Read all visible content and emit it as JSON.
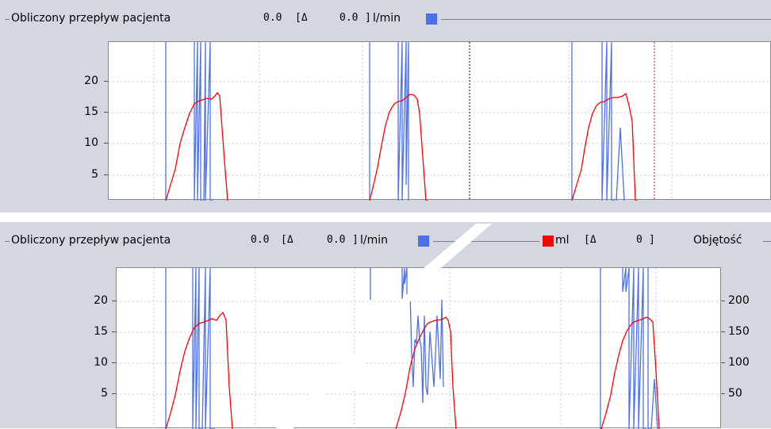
{
  "top_chart": {
    "title": "Obliczony przepływ pacjenta",
    "value": "0.0",
    "delta_open": "[Δ",
    "delta_value": "0.0",
    "delta_close": "]",
    "unit": "l/min",
    "legend_color": "#4c70ea",
    "y_ticks": [
      "20",
      "15",
      "10",
      "5"
    ]
  },
  "bottom_chart": {
    "title": "Obliczony przepływ pacjenta",
    "value": "0.0",
    "delta_open": "[Δ",
    "delta_value": "0.0",
    "delta_close": "]",
    "unit": "l/min",
    "legend_color": "#4c70ea",
    "volume_unit": "ml",
    "volume_delta_open": "[Δ",
    "volume_delta_value": "0",
    "volume_delta_close": "]",
    "volume_legend_color": "#ff0000",
    "volume_label": "Objętość",
    "y_ticks_left": [
      "20",
      "15",
      "10",
      "5"
    ],
    "y_ticks_right": [
      "200",
      "150",
      "100",
      "50"
    ]
  },
  "chart_data": [
    {
      "type": "line",
      "title": "Obliczony przepływ pacjenta",
      "ylabel": "l/min",
      "ylim": [
        0,
        25
      ],
      "yticks": [
        5,
        10,
        15,
        20
      ],
      "grid": true,
      "markers": [
        {
          "color": "#000000",
          "style": "dotted"
        },
        {
          "color": "#ff0000",
          "style": "dotted"
        }
      ],
      "series": [
        {
          "name": "Obliczony przepływ pacjenta",
          "color": "#4c70ea",
          "note_values_clipped": true
        },
        {
          "color": "#ff0000",
          "breaths_peak_approx": [
            18.0,
            17.8,
            17.9
          ]
        }
      ]
    },
    {
      "type": "line",
      "title": "Obliczony przepływ pacjenta",
      "ylabel": "l/min",
      "ylim": [
        0,
        25
      ],
      "yticks_left": [
        5,
        10,
        15,
        20
      ],
      "yticks_right": [
        50,
        100,
        150,
        200
      ],
      "y2label": "ml",
      "grid": true,
      "series": [
        {
          "name": "Obliczony przepływ pacjenta",
          "color": "#4c70ea"
        },
        {
          "name": "ml",
          "color": "#ff0000",
          "breaths_peak_approx": [
            18.0,
            17.6,
            17.6
          ]
        }
      ]
    }
  ]
}
